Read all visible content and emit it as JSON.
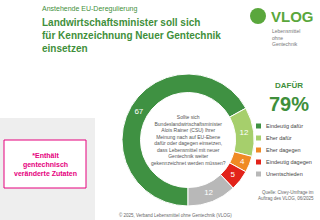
{
  "chart_data": {
    "type": "pie",
    "subtitle": "Anstehende EU-Deregulierung",
    "title": "Landwirtschaftsminister soll sich für Kennzeichnung Neuer Gentechnik einsetzen",
    "question": "Sollte sich Bundeslandwirtschaftsminister Alois Rainer (CSU) Ihrer Meinung nach auf EU-Ebene dafür oder dagegen einsetzen, dass Lebensmittel mit neuer Gentechnik weiter gekennzeichnet werden müssen?",
    "categories": [
      "Eindeutig dafür",
      "Eher dafür",
      "Eher dagegen",
      "Eindeutig dagegen",
      "Unentschieden"
    ],
    "values": [
      67,
      12,
      4,
      5,
      12
    ],
    "colors": [
      "#3f9142",
      "#a6cf6c",
      "#f08a24",
      "#e2231a",
      "#b8b8b8"
    ],
    "data_labels": true,
    "legend": "right",
    "annotations": {
      "highlight_label": "DAFÜR",
      "highlight_value": "79%",
      "note": "*Enthält gentechnisch veränderte Zutaten",
      "source": "Quelle: Civey-Umfrage im Auftrag des VLOG, 06/2025",
      "copyright": "© 2025, Verband Lebensmittel ohne Gentechnik (VLOG)",
      "logo": "VLOG",
      "logo_tagline": "Lebensmittel ohne Gentechnik"
    }
  }
}
